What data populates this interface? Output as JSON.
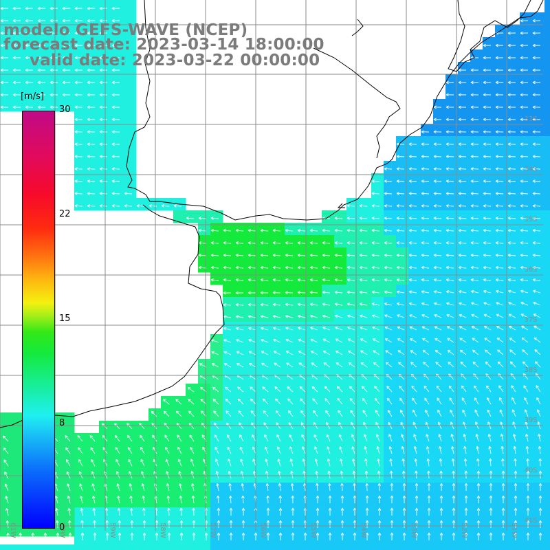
{
  "title": {
    "line1": "modelo GEFS-WAVE (NCEP)",
    "line2": "forecast date: 2023-03-14 18:00:00",
    "line3": "valid date: 2023-03-22 00:00:00"
  },
  "colorbar": {
    "unit": "[m/s]",
    "ticks": [
      "30",
      "22",
      "15",
      "8",
      "0"
    ],
    "tick_values": [
      30,
      22,
      15,
      8,
      0
    ],
    "range": [
      0,
      30
    ],
    "colors": [
      "#0000ff",
      "#18bdf6",
      "#1ff0f0",
      "#14ea3c",
      "#f3f10f",
      "#ff6a10",
      "#ff2a10",
      "#c00a86"
    ]
  },
  "map": {
    "lat_labels": [
      "33S",
      "34S",
      "35S",
      "36S",
      "37S",
      "38S",
      "39S",
      "40S",
      "41S"
    ],
    "lon_labels": [
      "61W",
      "60W",
      "59W",
      "58W",
      "57W",
      "56W",
      "55W",
      "54W",
      "53W",
      "52W",
      "51W"
    ],
    "field": "wind speed",
    "wind_direction": "from east / southeast",
    "colors": {
      "land": "#ffffff",
      "coastline": "#000000",
      "gridline": "#8a8a8a",
      "arrow": "#ffffff",
      "label": "#8c8c8c"
    }
  }
}
